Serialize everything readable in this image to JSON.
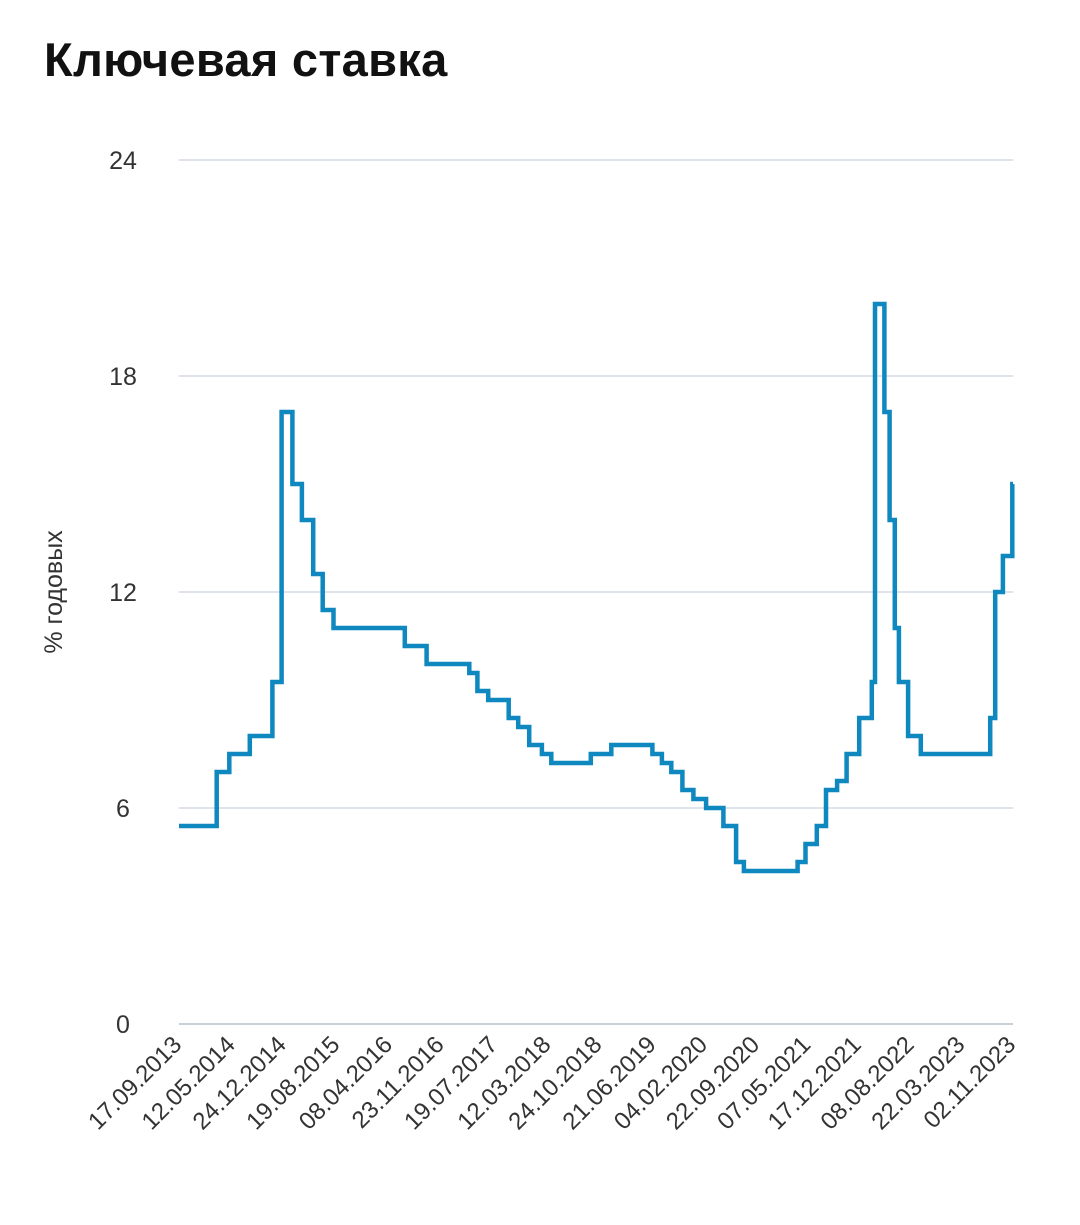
{
  "chart_data": {
    "type": "line",
    "step": true,
    "title": "Ключевая ставка",
    "ylabel": "% годовых",
    "xlabel": "",
    "ylim": [
      0,
      24
    ],
    "yticks": [
      "0",
      "6",
      "12",
      "18",
      "24"
    ],
    "grid": true,
    "line_color": "#0e88bf",
    "grid_color": "#dfe4ea",
    "x_tick_labels": [
      "17.09.2013",
      "12.05.2014",
      "24.12.2014",
      "19.08.2015",
      "08.04.2016",
      "23.11.2016",
      "19.07.2017",
      "12.03.2018",
      "24.10.2018",
      "21.06.2019",
      "04.02.2020",
      "22.09.2020",
      "07.05.2021",
      "17.12.2021",
      "08.08.2022",
      "22.03.2023",
      "02.11.2023"
    ],
    "series": [
      {
        "name": "",
        "points": [
          [
            "2013-09-17",
            5.5
          ],
          [
            "2014-03-03",
            7.0
          ],
          [
            "2014-04-28",
            7.5
          ],
          [
            "2014-07-28",
            8.0
          ],
          [
            "2014-11-05",
            9.5
          ],
          [
            "2014-12-16",
            17.0
          ],
          [
            "2015-02-02",
            15.0
          ],
          [
            "2015-03-16",
            14.0
          ],
          [
            "2015-05-05",
            12.5
          ],
          [
            "2015-06-16",
            11.5
          ],
          [
            "2015-08-03",
            11.0
          ],
          [
            "2016-06-14",
            10.5
          ],
          [
            "2016-09-19",
            10.0
          ],
          [
            "2017-03-27",
            9.75
          ],
          [
            "2017-05-02",
            9.25
          ],
          [
            "2017-06-19",
            9.0
          ],
          [
            "2017-09-18",
            8.5
          ],
          [
            "2017-10-30",
            8.25
          ],
          [
            "2017-12-18",
            7.75
          ],
          [
            "2018-02-12",
            7.5
          ],
          [
            "2018-03-26",
            7.25
          ],
          [
            "2018-09-17",
            7.5
          ],
          [
            "2018-12-17",
            7.75
          ],
          [
            "2019-06-17",
            7.5
          ],
          [
            "2019-07-29",
            7.25
          ],
          [
            "2019-09-09",
            7.0
          ],
          [
            "2019-10-28",
            6.5
          ],
          [
            "2019-12-16",
            6.25
          ],
          [
            "2020-02-10",
            6.0
          ],
          [
            "2020-04-27",
            5.5
          ],
          [
            "2020-06-22",
            4.5
          ],
          [
            "2020-07-27",
            4.25
          ],
          [
            "2021-03-22",
            4.5
          ],
          [
            "2021-04-26",
            5.0
          ],
          [
            "2021-06-15",
            5.5
          ],
          [
            "2021-07-26",
            6.5
          ],
          [
            "2021-09-13",
            6.75
          ],
          [
            "2021-10-25",
            7.5
          ],
          [
            "2021-12-20",
            8.5
          ],
          [
            "2022-02-14",
            9.5
          ],
          [
            "2022-02-28",
            20.0
          ],
          [
            "2022-04-11",
            17.0
          ],
          [
            "2022-05-04",
            14.0
          ],
          [
            "2022-05-27",
            11.0
          ],
          [
            "2022-06-14",
            9.5
          ],
          [
            "2022-07-25",
            8.0
          ],
          [
            "2022-09-19",
            7.5
          ],
          [
            "2023-07-24",
            8.5
          ],
          [
            "2023-08-15",
            12.0
          ],
          [
            "2023-09-18",
            13.0
          ],
          [
            "2023-10-30",
            15.0
          ],
          [
            "2023-11-02",
            15.0
          ]
        ]
      }
    ]
  }
}
